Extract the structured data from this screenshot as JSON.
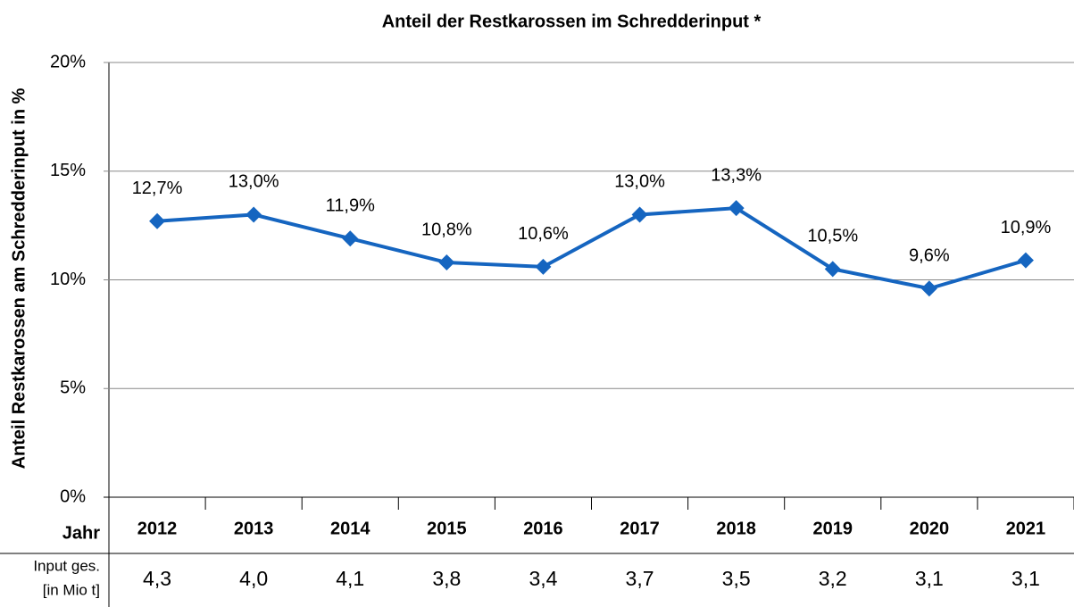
{
  "chart_data": {
    "type": "line",
    "title": "Anteil der Restkarossen im Schredderinput *",
    "y_label": "Anteil Restkarossen am Schredderinput in %",
    "x_label": "Jahr",
    "categories": [
      "2012",
      "2013",
      "2014",
      "2015",
      "2016",
      "2017",
      "2018",
      "2019",
      "2020",
      "2021"
    ],
    "series": [
      {
        "name": "Anteil Restkarossen",
        "color": "#1565c0",
        "values": [
          12.7,
          13.0,
          11.9,
          10.8,
          10.6,
          13.0,
          13.3,
          10.5,
          9.6,
          10.9
        ],
        "value_labels": [
          "12,7%",
          "13,0%",
          "11,9%",
          "10,8%",
          "10,6%",
          "13,0%",
          "13,3%",
          "10,5%",
          "9,6%",
          "10,9%"
        ]
      }
    ],
    "ylim": [
      0,
      20
    ],
    "yticks": [
      {
        "value": 0,
        "label": "0%"
      },
      {
        "value": 5,
        "label": "5%"
      },
      {
        "value": 10,
        "label": "10%"
      },
      {
        "value": 15,
        "label": "15%"
      },
      {
        "value": 20,
        "label": "20%"
      }
    ],
    "grid": true,
    "input_row": {
      "label": [
        "Input ges.",
        "[in Mio t]"
      ],
      "values": [
        "4,3",
        "4,0",
        "4,1",
        "3,8",
        "3,4",
        "3,7",
        "3,5",
        "3,2",
        "3,1",
        "3,1"
      ]
    }
  }
}
